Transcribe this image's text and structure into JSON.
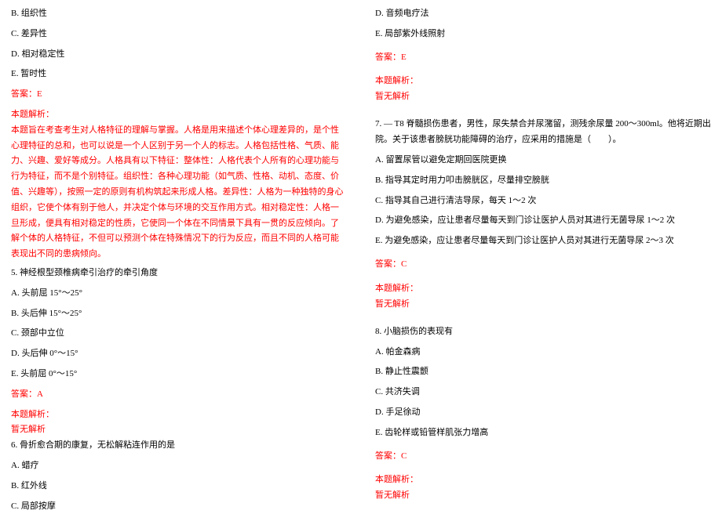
{
  "colors": {
    "text": "#000000",
    "highlight": "#ff0000",
    "background": "#ffffff"
  },
  "typography": {
    "font_family": "SimSun",
    "font_size_pt": 8,
    "line_height": 1.8
  },
  "left": {
    "q4opts": {
      "b": "B. 组织性",
      "c": "C. 差异性",
      "d": "D. 相对稳定性",
      "e": "E. 暂时性"
    },
    "q4ans": "答案：E",
    "q4exp_label": "本题解析：",
    "q4exp": "本题旨在考查考生对人格特征的理解与掌握。人格是用来描述个体心理差异的，是个性心理特征的总和，也可以说是一个人区别于另一个人的标志。人格包括性格、气质、能力、兴趣、爱好等成分。人格具有以下特征：整体性：人格代表个人所有的心理功能与行为特征，而不是个别特征。组织性：各种心理功能（如气质、性格、动机、态度、价值、兴趣等），按照一定的原则有机构筑起来形成人格。差异性：人格为一种独特的身心组织，它使个体有别于他人，并决定个体与环境的交互作用方式。相对稳定性：人格一旦形成，便具有相对稳定的性质，它使同一个体在不同情景下具有一贯的反应倾向。了解个体的人格特征，不但可以预测个体在特殊情况下的行为反应，而且不同的人格可能表现出不同的患病倾向。",
    "q5": {
      "stem": "5. 神经根型颈椎病牵引治疗的牵引角度",
      "a": "A. 头前屈 15°～25°",
      "b": "B. 头后伸 15°～25°",
      "c": "C. 颈部中立位",
      "d": "D. 头后伸 0°～15°",
      "e": "E. 头前屈 0°～15°",
      "ans": "答案：A",
      "exp_label": "本题解析：",
      "exp": "暂无解析"
    },
    "q6": {
      "stem": "6. 骨折愈合期的康复，无松解粘连作用的是",
      "a": "A. 蜡疗",
      "b": "B. 红外线",
      "c": "C. 局部按摩"
    }
  },
  "right": {
    "q6opts": {
      "d": "D. 音频电疗法",
      "e": "E. 局部紫外线照射"
    },
    "q6ans": "答案：E",
    "q6exp_label": "本题解析：",
    "q6exp": "暂无解析",
    "q7": {
      "stem": "7. — T8 脊髓损伤患者，男性，尿失禁合并尿潴留，测残余尿量 200～300ml。他将近期出院。关于该患者膀胱功能障碍的治疗，应采用的措施是（　　）。",
      "a": "A. 留置尿管以避免定期回医院更换",
      "b": "B. 指导其定时用力叩击膀胱区，尽量排空膀胱",
      "c": "C. 指导其自己进行清洁导尿，每天 1～2 次",
      "d": "D. 为避免感染，应让患者尽量每天到门诊让医护人员对其进行无菌导尿 1～2 次",
      "e": "E. 为避免感染，应让患者尽量每天到门诊让医护人员对其进行无菌导尿 2～3 次",
      "ans": "答案：C",
      "exp_label": "本题解析：",
      "exp": "暂无解析"
    },
    "q8": {
      "stem": "8. 小脑损伤的表现有",
      "a": "A. 帕金森病",
      "b": "B. 静止性震颤",
      "c": "C. 共济失调",
      "d": "D. 手足徐动",
      "e": "E. 齿轮样或铅管样肌张力增高",
      "ans": "答案：C",
      "exp_label": "本题解析：",
      "exp": "暂无解析"
    }
  }
}
